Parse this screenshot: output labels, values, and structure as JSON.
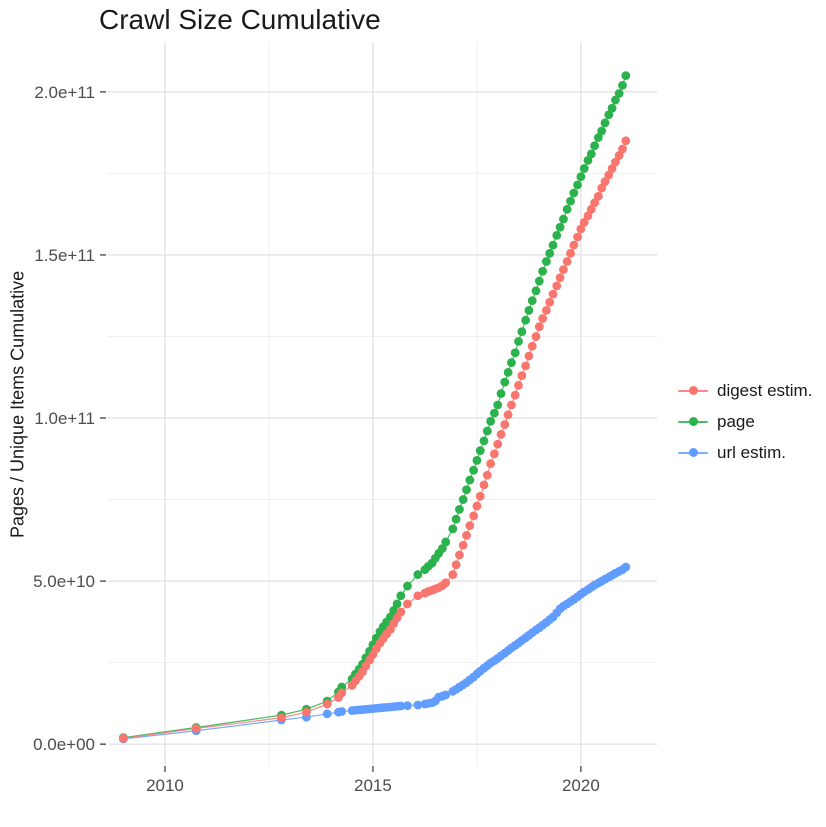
{
  "title": "Crawl Size Cumulative",
  "colors": {
    "digest": "#F8766D",
    "page": "#2BB24C",
    "url": "#619CFF",
    "grid_major": "#E4E4E4",
    "grid_minor": "#F0F0F0",
    "tick_mark": "#333333",
    "tick_label": "#4D4D4D",
    "text": "#1A1A1A"
  },
  "x_axis": {
    "tick_labels": [
      "2010",
      "2015",
      "2020"
    ],
    "tick_values": [
      2010,
      2015,
      2020
    ],
    "minor_values": [
      2012.5,
      2017.5
    ],
    "range": [
      2008.63,
      2021.83
    ]
  },
  "y_axis": {
    "title": "Pages / Unique Items Cumulative",
    "tick_labels": [
      "0.0e+00",
      "5.0e+10",
      "1.0e+11",
      "1.5e+11",
      "2.0e+11"
    ],
    "tick_values_e9": [
      0,
      50,
      100,
      150,
      200
    ],
    "minor_values_e9": [
      25,
      75,
      125,
      175
    ],
    "range_e9": [
      -6.7,
      215.3
    ]
  },
  "legend": {
    "items": [
      {
        "id": "digest",
        "label": "digest estim."
      },
      {
        "id": "page",
        "label": "page"
      },
      {
        "id": "url",
        "label": "url estim."
      }
    ]
  },
  "chart_data": {
    "type": "scatter",
    "title": "Crawl Size Cumulative",
    "xlabel": "",
    "ylabel": "Pages / Unique Items Cumulative",
    "value_unit": "billions of pages (1e9)",
    "xlim": [
      2008.63,
      2021.83
    ],
    "ylim_e9": [
      -6.7,
      215.3
    ],
    "grid": "on",
    "legend_position": "right",
    "draw_order": [
      "url",
      "page",
      "digest"
    ],
    "series": [
      {
        "id": "digest",
        "name": "digest estim.",
        "points": [
          [
            2009.0,
            1.8
          ],
          [
            2010.75,
            4.8
          ],
          [
            2012.8,
            8.1
          ],
          [
            2013.4,
            9.8
          ],
          [
            2013.9,
            12.3
          ],
          [
            2014.17,
            14.3
          ],
          [
            2014.25,
            15.7
          ],
          [
            2014.5,
            18
          ],
          [
            2014.58,
            19.4
          ],
          [
            2014.67,
            20.8
          ],
          [
            2014.75,
            22.2
          ],
          [
            2014.83,
            24
          ],
          [
            2014.92,
            25.8
          ],
          [
            2015.0,
            27.5
          ],
          [
            2015.08,
            29.3
          ],
          [
            2015.17,
            31
          ],
          [
            2015.25,
            32.4
          ],
          [
            2015.33,
            33.8
          ],
          [
            2015.42,
            35.2
          ],
          [
            2015.5,
            37
          ],
          [
            2015.58,
            38.7
          ],
          [
            2015.67,
            40.5
          ],
          [
            2015.83,
            43
          ],
          [
            2016.08,
            45.5
          ],
          [
            2016.25,
            46.3
          ],
          [
            2016.33,
            46.8
          ],
          [
            2016.42,
            47.2
          ],
          [
            2016.5,
            47.6
          ],
          [
            2016.58,
            48
          ],
          [
            2016.67,
            48.6
          ],
          [
            2016.75,
            49.5
          ],
          [
            2016.92,
            52
          ],
          [
            2017.0,
            55
          ],
          [
            2017.08,
            58
          ],
          [
            2017.17,
            61
          ],
          [
            2017.25,
            64
          ],
          [
            2017.33,
            67
          ],
          [
            2017.42,
            70
          ],
          [
            2017.5,
            73
          ],
          [
            2017.58,
            76
          ],
          [
            2017.67,
            79.5
          ],
          [
            2017.75,
            82.5
          ],
          [
            2017.83,
            86
          ],
          [
            2017.92,
            89
          ],
          [
            2018.0,
            92
          ],
          [
            2018.08,
            95
          ],
          [
            2018.17,
            98
          ],
          [
            2018.25,
            101
          ],
          [
            2018.33,
            104
          ],
          [
            2018.42,
            107
          ],
          [
            2018.5,
            110
          ],
          [
            2018.58,
            113
          ],
          [
            2018.67,
            116
          ],
          [
            2018.75,
            119
          ],
          [
            2018.83,
            122
          ],
          [
            2018.92,
            125
          ],
          [
            2019.0,
            128
          ],
          [
            2019.08,
            130.5
          ],
          [
            2019.17,
            133
          ],
          [
            2019.25,
            135.5
          ],
          [
            2019.33,
            138
          ],
          [
            2019.42,
            140.5
          ],
          [
            2019.5,
            143
          ],
          [
            2019.58,
            145.5
          ],
          [
            2019.67,
            148
          ],
          [
            2019.75,
            150.5
          ],
          [
            2019.83,
            153
          ],
          [
            2019.92,
            155.5
          ],
          [
            2020.0,
            158
          ],
          [
            2020.08,
            160
          ],
          [
            2020.17,
            162
          ],
          [
            2020.25,
            164
          ],
          [
            2020.33,
            166
          ],
          [
            2020.42,
            168
          ],
          [
            2020.5,
            170.5
          ],
          [
            2020.58,
            172.5
          ],
          [
            2020.67,
            174.5
          ],
          [
            2020.75,
            176.5
          ],
          [
            2020.83,
            178.5
          ],
          [
            2020.92,
            180.5
          ],
          [
            2021.0,
            182.5
          ],
          [
            2021.08,
            185
          ]
        ]
      },
      {
        "id": "page",
        "name": "page",
        "points": [
          [
            2009.0,
            2
          ],
          [
            2010.75,
            5.1
          ],
          [
            2012.8,
            8.9
          ],
          [
            2013.4,
            10.7
          ],
          [
            2013.9,
            13.2
          ],
          [
            2014.17,
            16
          ],
          [
            2014.25,
            17.5
          ],
          [
            2014.5,
            20
          ],
          [
            2014.58,
            21.5
          ],
          [
            2014.67,
            23
          ],
          [
            2014.75,
            24.5
          ],
          [
            2014.83,
            26.5
          ],
          [
            2014.92,
            28.5
          ],
          [
            2015.0,
            30.5
          ],
          [
            2015.08,
            32.5
          ],
          [
            2015.17,
            34.5
          ],
          [
            2015.25,
            36
          ],
          [
            2015.33,
            37.5
          ],
          [
            2015.42,
            39
          ],
          [
            2015.5,
            41
          ],
          [
            2015.58,
            43
          ],
          [
            2015.67,
            45.5
          ],
          [
            2015.83,
            48.5
          ],
          [
            2016.08,
            52
          ],
          [
            2016.25,
            53.5
          ],
          [
            2016.33,
            54.5
          ],
          [
            2016.42,
            55.5
          ],
          [
            2016.5,
            57
          ],
          [
            2016.58,
            58.5
          ],
          [
            2016.67,
            60
          ],
          [
            2016.75,
            62
          ],
          [
            2016.92,
            66
          ],
          [
            2017.0,
            69
          ],
          [
            2017.08,
            72
          ],
          [
            2017.17,
            75
          ],
          [
            2017.25,
            78
          ],
          [
            2017.33,
            81
          ],
          [
            2017.42,
            84
          ],
          [
            2017.5,
            87
          ],
          [
            2017.58,
            90
          ],
          [
            2017.67,
            93
          ],
          [
            2017.75,
            96
          ],
          [
            2017.83,
            99
          ],
          [
            2017.92,
            101.5
          ],
          [
            2018.0,
            104
          ],
          [
            2018.08,
            107.5
          ],
          [
            2018.17,
            111
          ],
          [
            2018.25,
            114
          ],
          [
            2018.33,
            117
          ],
          [
            2018.42,
            120
          ],
          [
            2018.5,
            123.5
          ],
          [
            2018.58,
            126.5
          ],
          [
            2018.67,
            130
          ],
          [
            2018.75,
            133
          ],
          [
            2018.83,
            136
          ],
          [
            2018.92,
            139
          ],
          [
            2019.0,
            142
          ],
          [
            2019.08,
            145
          ],
          [
            2019.17,
            148
          ],
          [
            2019.25,
            150.5
          ],
          [
            2019.33,
            153
          ],
          [
            2019.42,
            156
          ],
          [
            2019.5,
            158.5
          ],
          [
            2019.58,
            161
          ],
          [
            2019.67,
            164
          ],
          [
            2019.75,
            166.5
          ],
          [
            2019.83,
            169
          ],
          [
            2019.92,
            171.5
          ],
          [
            2020.0,
            174
          ],
          [
            2020.08,
            176.5
          ],
          [
            2020.17,
            179
          ],
          [
            2020.25,
            181
          ],
          [
            2020.33,
            183.5
          ],
          [
            2020.42,
            186
          ],
          [
            2020.5,
            188
          ],
          [
            2020.58,
            190.5
          ],
          [
            2020.67,
            193
          ],
          [
            2020.75,
            195
          ],
          [
            2020.83,
            197.5
          ],
          [
            2020.92,
            199.5
          ],
          [
            2021.0,
            202
          ],
          [
            2021.08,
            205
          ]
        ]
      },
      {
        "id": "url",
        "name": "url estim.",
        "points": [
          [
            2009.0,
            1.6
          ],
          [
            2010.75,
            4.1
          ],
          [
            2012.8,
            7.4
          ],
          [
            2013.4,
            8.3
          ],
          [
            2013.9,
            9.3
          ],
          [
            2014.17,
            9.8
          ],
          [
            2014.25,
            10
          ],
          [
            2014.5,
            10.3
          ],
          [
            2014.58,
            10.4
          ],
          [
            2014.67,
            10.5
          ],
          [
            2014.75,
            10.6
          ],
          [
            2014.83,
            10.7
          ],
          [
            2014.92,
            10.8
          ],
          [
            2015.0,
            10.9
          ],
          [
            2015.08,
            11
          ],
          [
            2015.17,
            11.1
          ],
          [
            2015.25,
            11.2
          ],
          [
            2015.33,
            11.3
          ],
          [
            2015.42,
            11.4
          ],
          [
            2015.5,
            11.5
          ],
          [
            2015.58,
            11.6
          ],
          [
            2015.67,
            11.7
          ],
          [
            2015.83,
            11.8
          ],
          [
            2016.08,
            12
          ],
          [
            2016.25,
            12.3
          ],
          [
            2016.33,
            12.5
          ],
          [
            2016.42,
            12.7
          ],
          [
            2016.5,
            13.2
          ],
          [
            2016.58,
            14.4
          ],
          [
            2016.67,
            14.7
          ],
          [
            2016.75,
            15.1
          ],
          [
            2016.92,
            16.2
          ],
          [
            2017.0,
            16.8
          ],
          [
            2017.08,
            17.5
          ],
          [
            2017.17,
            18.2
          ],
          [
            2017.25,
            18.9
          ],
          [
            2017.33,
            19.7
          ],
          [
            2017.42,
            20.6
          ],
          [
            2017.5,
            21.5
          ],
          [
            2017.58,
            22.4
          ],
          [
            2017.67,
            23.3
          ],
          [
            2017.75,
            24.1
          ],
          [
            2017.83,
            24.9
          ],
          [
            2017.92,
            25.6
          ],
          [
            2018.0,
            26.3
          ],
          [
            2018.08,
            27.1
          ],
          [
            2018.17,
            27.9
          ],
          [
            2018.25,
            28.7
          ],
          [
            2018.33,
            29.5
          ],
          [
            2018.42,
            30.3
          ],
          [
            2018.5,
            31
          ],
          [
            2018.58,
            31.8
          ],
          [
            2018.67,
            32.6
          ],
          [
            2018.75,
            33.4
          ],
          [
            2018.83,
            34.2
          ],
          [
            2018.92,
            35
          ],
          [
            2019.0,
            35.7
          ],
          [
            2019.08,
            36.5
          ],
          [
            2019.17,
            37.3
          ],
          [
            2019.25,
            38.2
          ],
          [
            2019.33,
            39
          ],
          [
            2019.42,
            40.3
          ],
          [
            2019.5,
            41.5
          ],
          [
            2019.58,
            42.3
          ],
          [
            2019.67,
            43
          ],
          [
            2019.75,
            43.7
          ],
          [
            2019.83,
            44.4
          ],
          [
            2019.92,
            45.2
          ],
          [
            2020.0,
            46
          ],
          [
            2020.08,
            46.7
          ],
          [
            2020.17,
            47.4
          ],
          [
            2020.25,
            48.1
          ],
          [
            2020.33,
            48.8
          ],
          [
            2020.42,
            49.4
          ],
          [
            2020.5,
            50
          ],
          [
            2020.58,
            50.6
          ],
          [
            2020.67,
            51.2
          ],
          [
            2020.75,
            51.8
          ],
          [
            2020.83,
            52.4
          ],
          [
            2020.92,
            53
          ],
          [
            2021.0,
            53.5
          ],
          [
            2021.08,
            54.3
          ]
        ]
      }
    ]
  }
}
